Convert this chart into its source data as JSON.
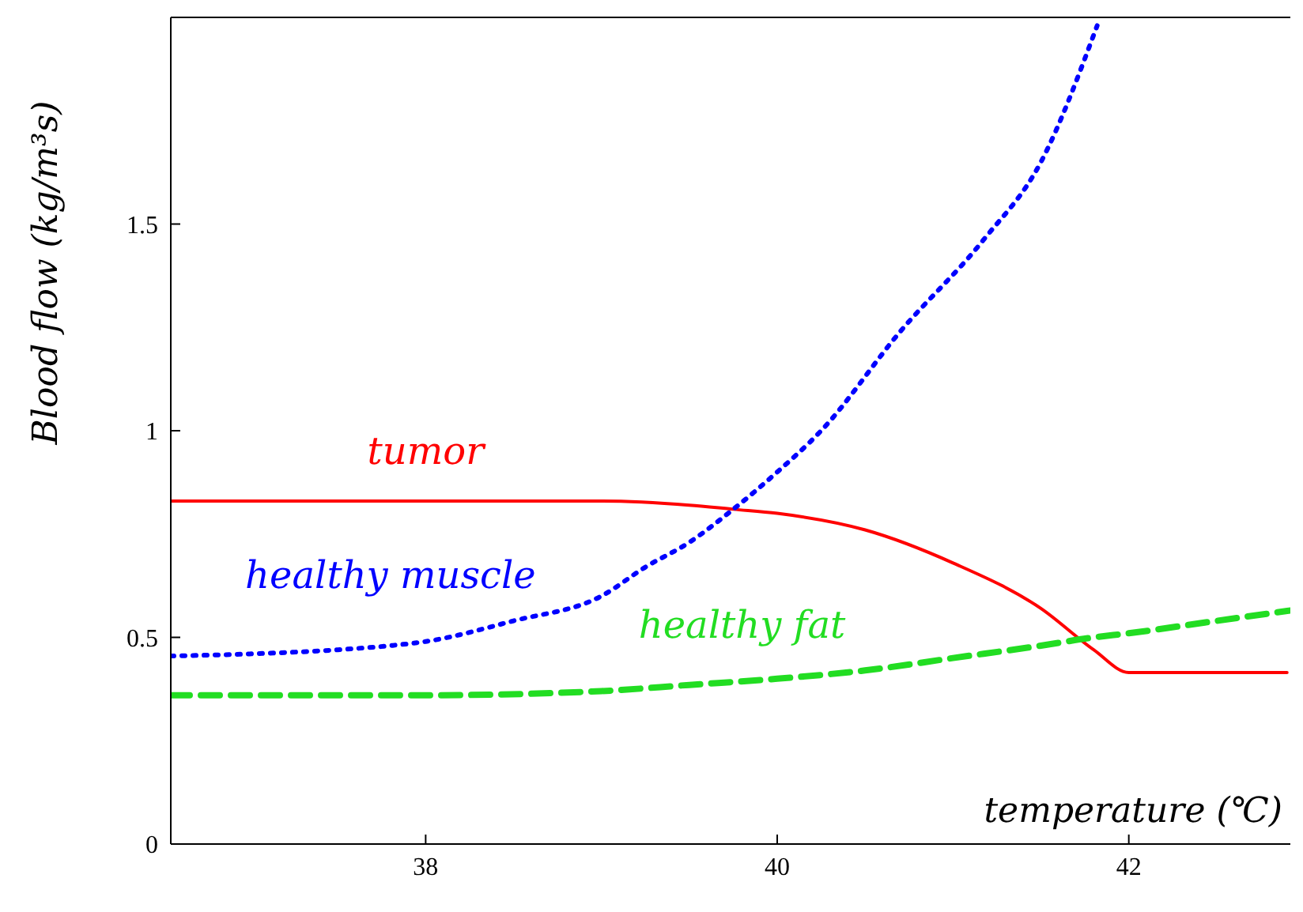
{
  "chart_data": {
    "type": "line",
    "xlabel": "temperature (℃)",
    "ylabel": "Blood flow (kg/m³s)",
    "xlim": [
      36.55,
      43
    ],
    "xticks": [
      38,
      40,
      42
    ],
    "ylim": [
      0,
      2
    ],
    "yticks": [
      0,
      0.5,
      1,
      1.5
    ],
    "legend": false,
    "marker": "none",
    "series": [
      {
        "name": "tumor",
        "color": "#ff0000",
        "line_style": "solid",
        "x": [
          36.55,
          37,
          37.5,
          38,
          38.5,
          39,
          39.5,
          39.75,
          40,
          40.5,
          41,
          41.5,
          41.8,
          42,
          42.5,
          42.9
        ],
        "values": [
          0.83,
          0.83,
          0.83,
          0.83,
          0.83,
          0.83,
          0.82,
          0.81,
          0.8,
          0.76,
          0.68,
          0.57,
          0.47,
          0.415,
          0.415,
          0.415
        ]
      },
      {
        "name": "healthy muscle",
        "color": "#0000ff",
        "line_style": "dotted",
        "x": [
          36.55,
          37,
          37.5,
          37.8,
          38,
          38.5,
          39,
          39.25,
          39.5,
          39.75,
          40,
          40.25,
          40.7,
          41.17,
          41.5,
          41.82
        ],
        "values": [
          0.455,
          0.46,
          0.47,
          0.48,
          0.49,
          0.54,
          0.6,
          0.67,
          0.73,
          0.81,
          0.9,
          1.0,
          1.24,
          1.46,
          1.65,
          1.98
        ]
      },
      {
        "name": "healthy fat",
        "color": "#22dd22",
        "line_style": "dashed",
        "x": [
          36.55,
          37,
          38,
          39,
          39.5,
          40,
          40.5,
          41,
          41.5,
          41.8,
          42,
          42.5,
          43
        ],
        "values": [
          0.36,
          0.36,
          0.36,
          0.37,
          0.385,
          0.4,
          0.42,
          0.45,
          0.48,
          0.5,
          0.51,
          0.54,
          0.57
        ]
      }
    ]
  }
}
